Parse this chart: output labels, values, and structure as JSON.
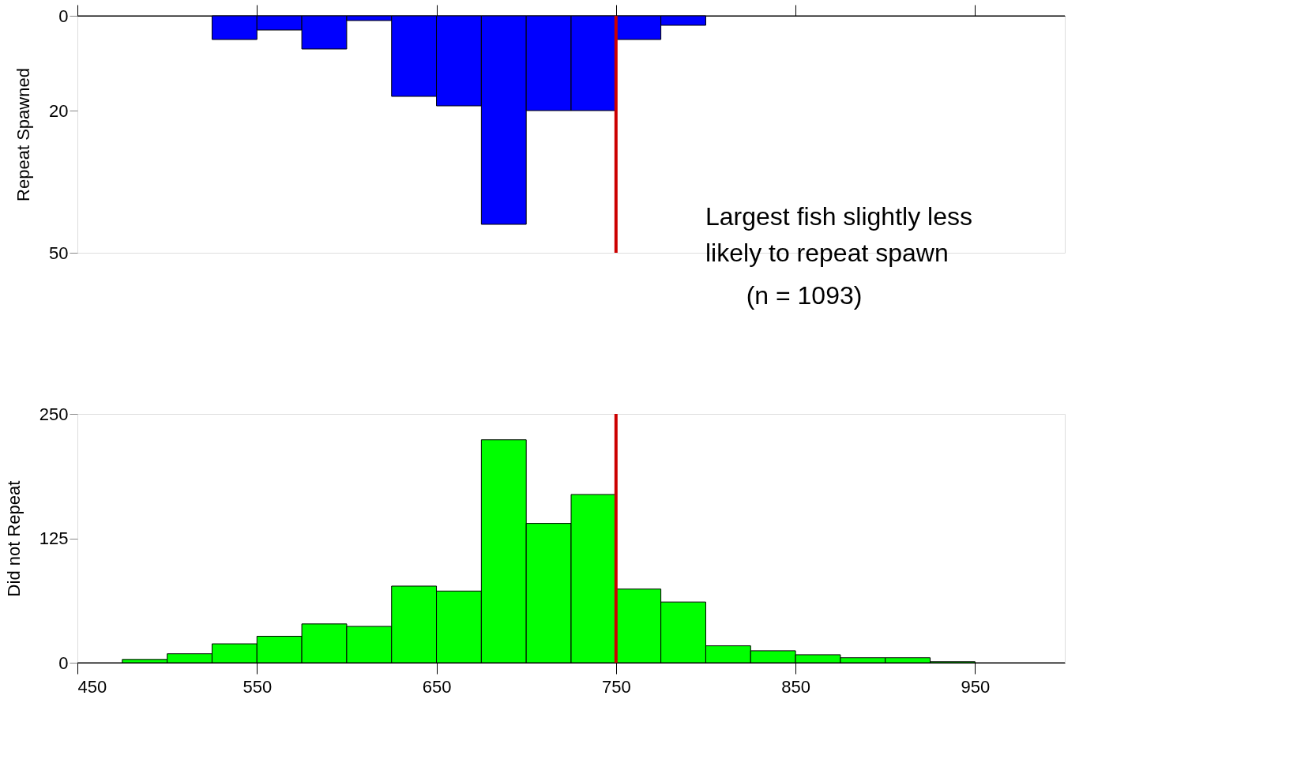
{
  "chart_data": [
    {
      "type": "histogram",
      "ylabel": "Repeat Spawned",
      "bins": [
        525,
        550,
        575,
        600,
        625,
        650,
        675,
        700,
        725,
        750,
        775,
        800
      ],
      "values": [
        5,
        3,
        7,
        1,
        17,
        19,
        44,
        20,
        20,
        5,
        2
      ],
      "color": "#0000ff",
      "xlim": [
        450,
        1000
      ],
      "xticks": [
        {
          "value": 450,
          "label": null
        },
        {
          "value": 550,
          "label": null
        },
        {
          "value": 650,
          "label": null
        },
        {
          "value": 750,
          "label": null
        },
        {
          "value": 850,
          "label": null
        },
        {
          "value": 950,
          "label": null
        }
      ],
      "ylim": [
        50,
        0
      ],
      "yticks": [
        0,
        20,
        50
      ],
      "tick_labels": "y",
      "grid": false,
      "ref_lines": [
        {
          "axis": "x",
          "value": 750,
          "color": "#cc0000"
        }
      ],
      "annotations": [
        "Largest fish slightly less\nlikely to repeat spawn",
        "(n = 1093)"
      ]
    },
    {
      "type": "histogram",
      "ylabel": "Did not Repeat",
      "bins": [
        475,
        500,
        525,
        550,
        575,
        600,
        625,
        650,
        675,
        700,
        725,
        750,
        775,
        800,
        825,
        850,
        875,
        900,
        925,
        950
      ],
      "values": [
        3.3,
        9,
        19,
        26.6,
        39,
        36.5,
        77,
        72,
        224,
        140,
        169,
        74,
        61,
        17,
        12,
        8,
        5,
        5,
        1
      ],
      "color": "#00ff00",
      "xlim": [
        450,
        1000
      ],
      "xticks": [
        450,
        550,
        650,
        750,
        850,
        950
      ],
      "ylim": [
        0,
        250
      ],
      "yticks": [
        0,
        125,
        250
      ],
      "grid": false,
      "ref_lines": [
        {
          "axis": "x",
          "value": 750,
          "color": "#cc0000"
        }
      ]
    }
  ]
}
